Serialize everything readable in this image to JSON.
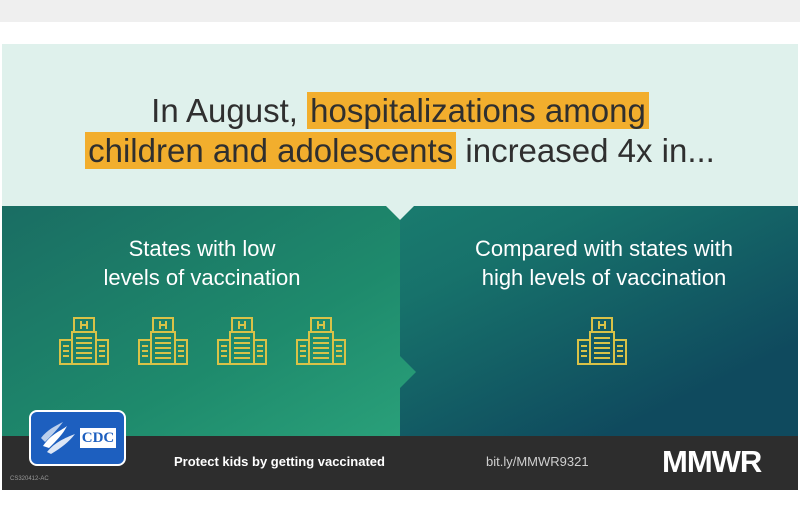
{
  "headline": {
    "part1": "In August, ",
    "highlight1": "hospitalizations among",
    "highlight2": "children and adolescents",
    "part2": " increased 4x in..."
  },
  "left_panel": {
    "title_line1": "States with low",
    "title_line2": "levels of vaccination"
  },
  "right_panel": {
    "title_line1": "Compared with states with",
    "title_line2": "high levels of vaccination"
  },
  "footer": {
    "tagline": "Protect kids by getting vaccinated",
    "url": "bit.ly/MMWR9321",
    "brand": "MMWR",
    "code": "CS320412-AC"
  },
  "logo": {
    "text": "CDC"
  },
  "colors": {
    "highlight": "#f2ae2d",
    "panel": "#1a7f6c",
    "footer": "#2d2d2d",
    "icon": "#d9c247",
    "cdc_blue": "#1d5fbf"
  },
  "icons": [
    "hospital-icon"
  ]
}
